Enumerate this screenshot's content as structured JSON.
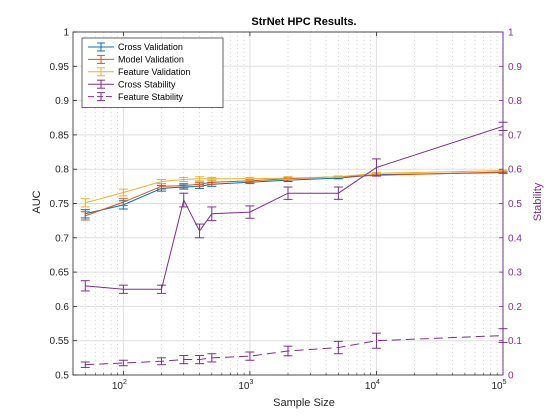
{
  "chart_data": {
    "type": "line",
    "title": "StrNet HPC Results.",
    "xlabel": "Sample Size",
    "ylabel": "AUC",
    "ylabel_right": "Stability",
    "xscale": "log",
    "xlim": [
      40,
      100000
    ],
    "ylim": [
      0.5,
      1
    ],
    "ylim_right": [
      0,
      1
    ],
    "grid": true,
    "legend_position": "top-left",
    "x": [
      50,
      100,
      200,
      300,
      400,
      500,
      1000,
      2000,
      5000,
      10000,
      100000
    ],
    "x_tick_labels": [
      "10^2",
      "10^3",
      "10^4",
      "10^5"
    ],
    "y_ticks": [
      "0.5",
      "0.55",
      "0.6",
      "0.65",
      "0.7",
      "0.75",
      "0.8",
      "0.85",
      "0.9",
      "0.95",
      "1"
    ],
    "y_ticks_right": [
      "0",
      "0.1",
      "0.2",
      "0.3",
      "0.4",
      "0.5",
      "0.6",
      "0.7",
      "0.8",
      "0.9",
      "1"
    ],
    "series": [
      {
        "name": "Cross Validation",
        "axis": "left",
        "color": "#0072BD",
        "dash": "solid",
        "values": [
          0.735,
          0.748,
          0.772,
          0.774,
          0.775,
          0.778,
          0.781,
          0.784,
          0.787,
          0.792,
          0.795
        ],
        "errors": [
          0.006,
          0.006,
          0.004,
          0.003,
          0.003,
          0.003,
          0.002,
          0.002,
          0.001,
          0.001,
          0.001
        ]
      },
      {
        "name": "Model Validation",
        "axis": "left",
        "color": "#D95319",
        "dash": "solid",
        "values": [
          0.732,
          0.752,
          0.775,
          0.776,
          0.778,
          0.781,
          0.783,
          0.786,
          0.789,
          0.791,
          0.796
        ],
        "errors": [
          0.006,
          0.005,
          0.004,
          0.003,
          0.003,
          0.003,
          0.002,
          0.002,
          0.001,
          0.001,
          0.001
        ]
      },
      {
        "name": "Feature Validation",
        "axis": "left",
        "color": "#EDB120",
        "dash": "solid",
        "values": [
          0.751,
          0.766,
          0.782,
          0.785,
          0.786,
          0.786,
          0.786,
          0.787,
          0.789,
          0.794,
          0.798
        ],
        "errors": [
          0.006,
          0.005,
          0.003,
          0.003,
          0.003,
          0.002,
          0.002,
          0.002,
          0.001,
          0.001,
          0.001
        ]
      },
      {
        "name": "Cross Stability",
        "axis": "right",
        "color": "#7E2F8E",
        "dash": "solid",
        "values": [
          0.26,
          0.25,
          0.25,
          0.51,
          0.42,
          0.47,
          0.475,
          0.53,
          0.53,
          0.605,
          0.725
        ],
        "errors": [
          0.015,
          0.012,
          0.012,
          0.02,
          0.02,
          0.02,
          0.018,
          0.018,
          0.018,
          0.025,
          0.012
        ]
      },
      {
        "name": "Feature Stability",
        "axis": "right",
        "color": "#7E2F8E",
        "dash": "dashed",
        "values": [
          0.03,
          0.035,
          0.04,
          0.045,
          0.045,
          0.05,
          0.055,
          0.07,
          0.08,
          0.1,
          0.115
        ],
        "errors": [
          0.008,
          0.008,
          0.01,
          0.012,
          0.012,
          0.012,
          0.012,
          0.014,
          0.018,
          0.022,
          0.02
        ]
      }
    ]
  }
}
